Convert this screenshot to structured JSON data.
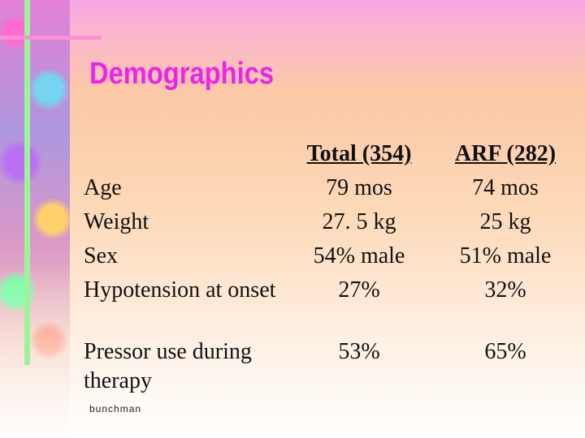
{
  "title": "Demographics",
  "table": {
    "header": [
      "Total (354)",
      "ARF (282)"
    ],
    "rows": [
      [
        "Age",
        "79 mos",
        "74 mos"
      ],
      [
        "Weight",
        "27. 5 kg",
        "25 kg"
      ],
      [
        "Sex",
        "54% male",
        "51% male"
      ],
      [
        "Hypotension at onset",
        "27%",
        "32%"
      ],
      [
        "Pressor use during therapy",
        "53%",
        "65%"
      ]
    ]
  },
  "footer": "bunchman"
}
